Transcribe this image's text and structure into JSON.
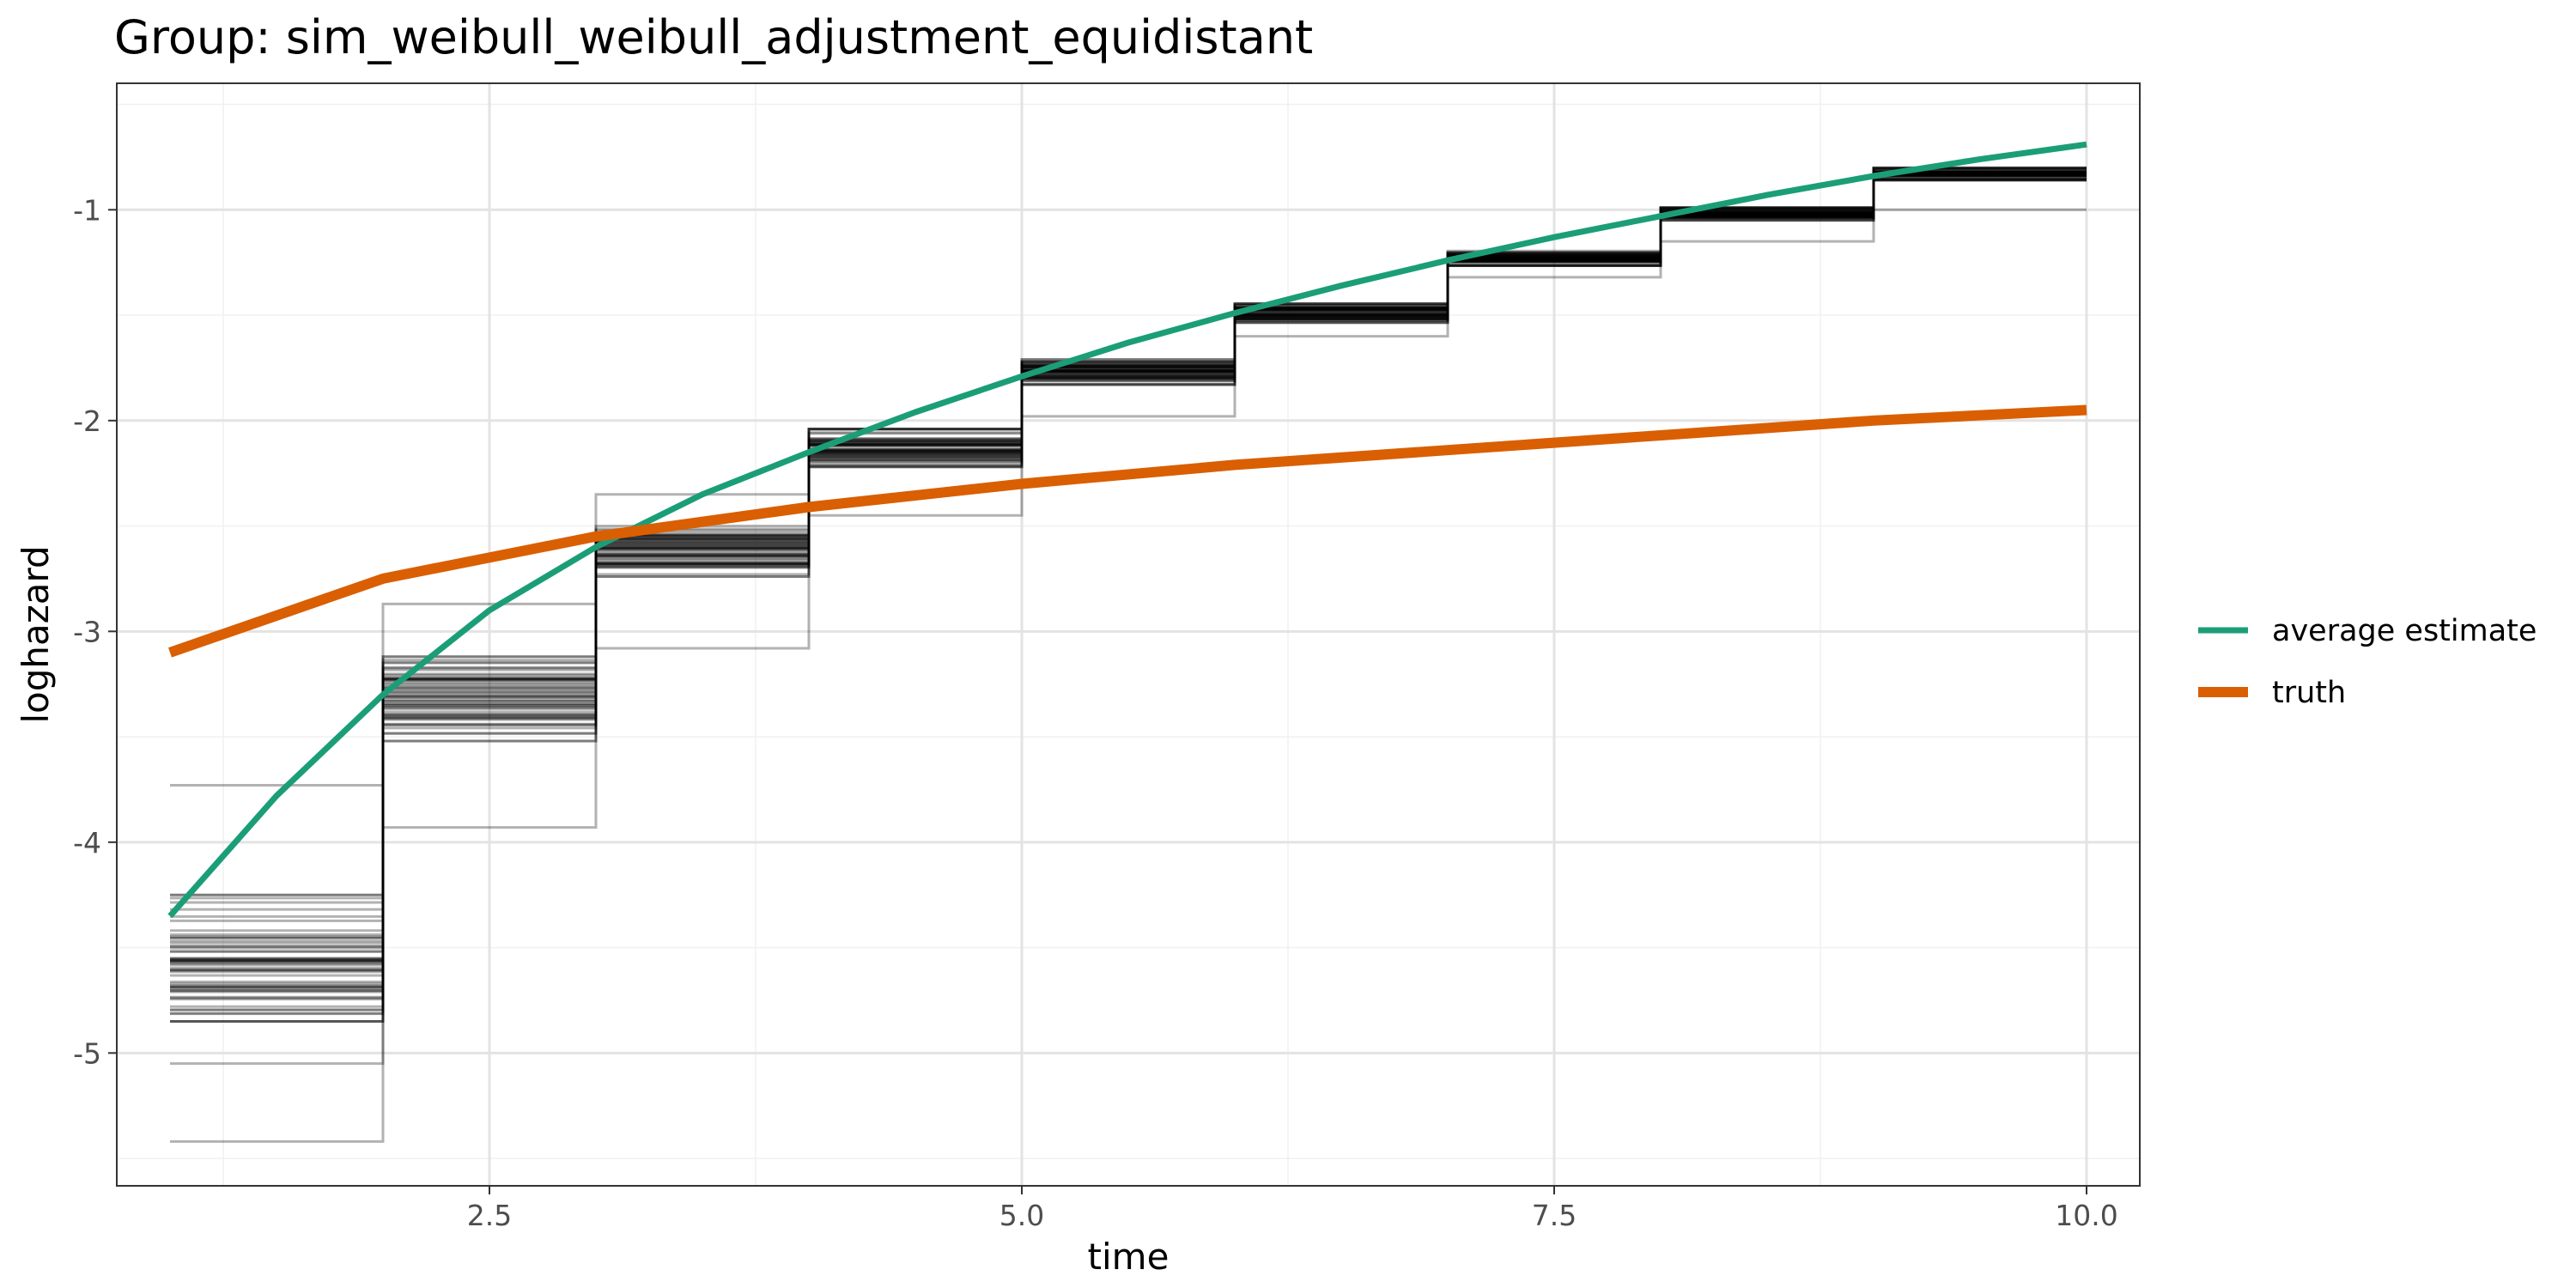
{
  "chart_data": {
    "type": "line",
    "title": "Group: sim_weibull_weibull_adjustment_equidistant",
    "xlabel": "time",
    "ylabel": "loghazard",
    "xlim": [
      0.75,
      10.25
    ],
    "ylim": [
      -5.63,
      -0.4
    ],
    "x_ticks": [
      2.5,
      5.0,
      7.5,
      10.0
    ],
    "x_tick_labels": [
      "2.5",
      "5.0",
      "7.5",
      "10.0"
    ],
    "y_ticks": [
      -5,
      -4,
      -3,
      -2,
      -1
    ],
    "y_tick_labels": [
      "-5",
      "-4",
      "-3",
      "-2",
      "-1"
    ],
    "grid": true,
    "legend_position": "right",
    "simulation_runs": {
      "color": "#000000",
      "alpha": 0.3,
      "intervals": [
        [
          1,
          2
        ],
        [
          2,
          3
        ],
        [
          3,
          4
        ],
        [
          4,
          5
        ],
        [
          5,
          6
        ],
        [
          6,
          7
        ],
        [
          7,
          8
        ],
        [
          8,
          9
        ],
        [
          9,
          10
        ]
      ],
      "bands": [
        {
          "center": -4.55,
          "spread": 0.3,
          "outliers": [
            -3.73,
            -5.05,
            -5.42
          ]
        },
        {
          "center": -3.32,
          "spread": 0.2,
          "outliers": [
            -2.87,
            -3.93
          ]
        },
        {
          "center": -2.62,
          "spread": 0.12,
          "outliers": [
            -2.35,
            -3.08
          ]
        },
        {
          "center": -2.13,
          "spread": 0.09,
          "outliers": [
            -2.45
          ]
        },
        {
          "center": -1.77,
          "spread": 0.06,
          "outliers": [
            -1.98
          ]
        },
        {
          "center": -1.49,
          "spread": 0.045,
          "outliers": [
            -1.6
          ]
        },
        {
          "center": -1.23,
          "spread": 0.035,
          "outliers": [
            -1.32
          ]
        },
        {
          "center": -1.02,
          "spread": 0.03,
          "outliers": [
            -1.15
          ]
        },
        {
          "center": -0.83,
          "spread": 0.03,
          "outliers": [
            -1.0
          ]
        }
      ]
    },
    "series": [
      {
        "name": "average estimate",
        "color": "#1b9e77",
        "x": [
          1.0,
          1.5,
          2.0,
          2.5,
          3.0,
          3.5,
          4.0,
          4.5,
          5.0,
          5.5,
          6.0,
          6.5,
          7.0,
          7.5,
          8.0,
          8.5,
          9.0,
          9.5,
          10.0
        ],
        "y": [
          -4.35,
          -3.78,
          -3.3,
          -2.9,
          -2.6,
          -2.35,
          -2.15,
          -1.96,
          -1.79,
          -1.63,
          -1.49,
          -1.36,
          -1.24,
          -1.13,
          -1.03,
          -0.93,
          -0.84,
          -0.76,
          -0.69
        ]
      },
      {
        "name": "truth",
        "color": "#d95f02",
        "x": [
          1.0,
          2.0,
          3.0,
          4.0,
          5.0,
          6.0,
          7.0,
          8.0,
          9.0,
          10.0
        ],
        "y": [
          -3.1,
          -2.75,
          -2.55,
          -2.41,
          -2.3,
          -2.21,
          -2.14,
          -2.07,
          -2.0,
          -1.95
        ]
      }
    ]
  }
}
